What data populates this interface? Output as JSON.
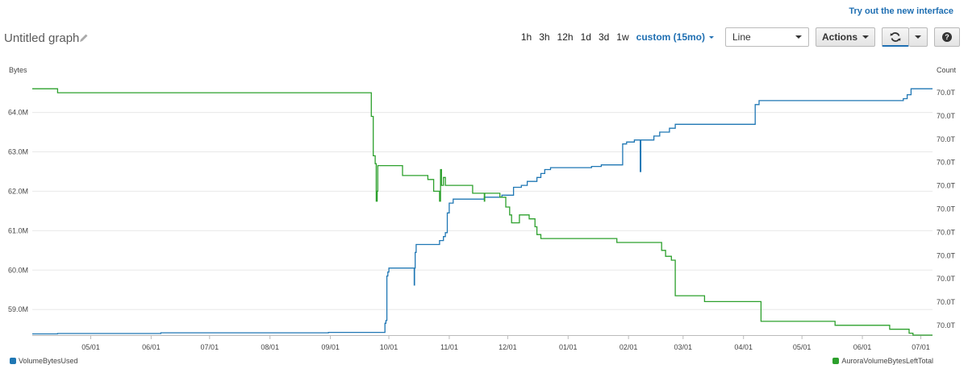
{
  "header": {
    "try_new": "Try out the new interface",
    "title": "Untitled graph"
  },
  "toolbar": {
    "ranges": [
      "1h",
      "3h",
      "12h",
      "1d",
      "3d",
      "1w"
    ],
    "active_range": "custom (15mo)",
    "chart_type": "Line",
    "actions_label": "Actions",
    "help_glyph": "?"
  },
  "chart_data": {
    "type": "line",
    "y_left_label": "Bytes",
    "y_right_label": "Count",
    "y_left_ticks": [
      "64.0M",
      "63.0M",
      "62.0M",
      "61.0M",
      "60.0M",
      "59.0M"
    ],
    "y_left_tick_values": [
      64.0,
      63.0,
      62.0,
      61.0,
      60.0,
      59.0
    ],
    "y_left_range": [
      58.35,
      64.85
    ],
    "y_right_ticks": [
      "70.0T",
      "70.0T",
      "70.0T",
      "70.0T",
      "70.0T",
      "70.0T",
      "70.0T",
      "70.0T",
      "70.0T",
      "70.0T",
      "70.0T"
    ],
    "x_ticks": [
      "05/01",
      "06/01",
      "07/01",
      "08/01",
      "09/01",
      "10/01",
      "11/01",
      "12/01",
      "01/01",
      "02/01",
      "03/01",
      "04/01",
      "05/01",
      "06/01",
      "07/01"
    ],
    "x_tick_days": [
      30,
      61,
      91,
      122,
      153,
      183,
      214,
      244,
      275,
      306,
      334,
      365,
      395,
      426,
      456
    ],
    "x_range": [
      0,
      462
    ],
    "grid": true,
    "series": [
      {
        "name": "VolumeBytesUsed",
        "axis": "left",
        "color": "#1f77b4",
        "points": [
          [
            0,
            58.38
          ],
          [
            13,
            58.38
          ],
          [
            13,
            58.39
          ],
          [
            66,
            58.39
          ],
          [
            66,
            58.41
          ],
          [
            152,
            58.41
          ],
          [
            152,
            58.42
          ],
          [
            181,
            58.42
          ],
          [
            181,
            58.65
          ],
          [
            181.5,
            58.65
          ],
          [
            181.5,
            58.72
          ],
          [
            182,
            58.72
          ],
          [
            182,
            59.85
          ],
          [
            182.5,
            59.85
          ],
          [
            182.5,
            59.95
          ],
          [
            183,
            59.95
          ],
          [
            183,
            60.05
          ],
          [
            196,
            60.05
          ],
          [
            196,
            59.62
          ],
          [
            196.2,
            59.62
          ],
          [
            196.2,
            60.05
          ],
          [
            196.5,
            60.05
          ],
          [
            196.5,
            60.45
          ],
          [
            197,
            60.45
          ],
          [
            197,
            60.65
          ],
          [
            209,
            60.65
          ],
          [
            209,
            60.75
          ],
          [
            211,
            60.75
          ],
          [
            211,
            60.85
          ],
          [
            212,
            60.85
          ],
          [
            212,
            60.95
          ],
          [
            213,
            60.95
          ],
          [
            213,
            61.45
          ],
          [
            214,
            61.45
          ],
          [
            214,
            61.7
          ],
          [
            216,
            61.7
          ],
          [
            216,
            61.8
          ],
          [
            232,
            61.8
          ],
          [
            232,
            61.85
          ],
          [
            241,
            61.85
          ],
          [
            241,
            61.9
          ],
          [
            247,
            61.9
          ],
          [
            247,
            62.1
          ],
          [
            251,
            62.1
          ],
          [
            251,
            62.15
          ],
          [
            254,
            62.15
          ],
          [
            254,
            62.25
          ],
          [
            259,
            62.25
          ],
          [
            259,
            62.35
          ],
          [
            261,
            62.35
          ],
          [
            261,
            62.45
          ],
          [
            263,
            62.45
          ],
          [
            263,
            62.55
          ],
          [
            266,
            62.55
          ],
          [
            266,
            62.6
          ],
          [
            287,
            62.6
          ],
          [
            287,
            62.63
          ],
          [
            292,
            62.63
          ],
          [
            292,
            62.67
          ],
          [
            303,
            62.67
          ],
          [
            303,
            63.2
          ],
          [
            305,
            63.2
          ],
          [
            305,
            63.25
          ],
          [
            309,
            63.25
          ],
          [
            309,
            63.3
          ],
          [
            312,
            63.3
          ],
          [
            312,
            62.5
          ],
          [
            312.3,
            62.5
          ],
          [
            312.3,
            63.3
          ],
          [
            319,
            63.3
          ],
          [
            319,
            63.4
          ],
          [
            322,
            63.4
          ],
          [
            322,
            63.5
          ],
          [
            327,
            63.5
          ],
          [
            327,
            63.6
          ],
          [
            330,
            63.6
          ],
          [
            330,
            63.7
          ],
          [
            371,
            63.7
          ],
          [
            371,
            64.2
          ],
          [
            373,
            64.2
          ],
          [
            373,
            64.3
          ],
          [
            447,
            64.3
          ],
          [
            447,
            64.35
          ],
          [
            449,
            64.35
          ],
          [
            449,
            64.45
          ],
          [
            451,
            64.45
          ],
          [
            451,
            64.6
          ],
          [
            462,
            64.6
          ]
        ]
      },
      {
        "name": "AuroraVolumeBytesLeftTotal",
        "axis": "right",
        "color": "#2ca02c",
        "points": [
          [
            0,
            64.6
          ],
          [
            13,
            64.6
          ],
          [
            13,
            64.5
          ],
          [
            174,
            64.5
          ],
          [
            174,
            63.9
          ],
          [
            175,
            63.9
          ],
          [
            175,
            62.9
          ],
          [
            176,
            62.9
          ],
          [
            176,
            62.7
          ],
          [
            176.5,
            62.7
          ],
          [
            176.5,
            61.75
          ],
          [
            177,
            61.75
          ],
          [
            177,
            62.0
          ],
          [
            177.3,
            62.0
          ],
          [
            177.3,
            62.65
          ],
          [
            190,
            62.65
          ],
          [
            190,
            62.4
          ],
          [
            203,
            62.4
          ],
          [
            203,
            62.3
          ],
          [
            206,
            62.3
          ],
          [
            206,
            62.0
          ],
          [
            209,
            62.0
          ],
          [
            209,
            61.75
          ],
          [
            209.5,
            61.75
          ],
          [
            209.5,
            62.55
          ],
          [
            210,
            62.55
          ],
          [
            210,
            62.15
          ],
          [
            211,
            62.15
          ],
          [
            211,
            62.35
          ],
          [
            212,
            62.35
          ],
          [
            212,
            62.15
          ],
          [
            226,
            62.15
          ],
          [
            226,
            61.95
          ],
          [
            232,
            61.95
          ],
          [
            232,
            61.75
          ],
          [
            232.2,
            61.75
          ],
          [
            232.2,
            61.95
          ],
          [
            240,
            61.95
          ],
          [
            240,
            61.85
          ],
          [
            243,
            61.85
          ],
          [
            243,
            61.6
          ],
          [
            245,
            61.6
          ],
          [
            245,
            61.4
          ],
          [
            246,
            61.4
          ],
          [
            246,
            61.2
          ],
          [
            250,
            61.2
          ],
          [
            250,
            61.4
          ],
          [
            255,
            61.4
          ],
          [
            255,
            61.3
          ],
          [
            258,
            61.3
          ],
          [
            258,
            61.1
          ],
          [
            259,
            61.1
          ],
          [
            259,
            60.9
          ],
          [
            261,
            60.9
          ],
          [
            261,
            60.8
          ],
          [
            300,
            60.8
          ],
          [
            300,
            60.7
          ],
          [
            323,
            60.7
          ],
          [
            323,
            60.5
          ],
          [
            325,
            60.5
          ],
          [
            325,
            60.35
          ],
          [
            328,
            60.35
          ],
          [
            328,
            60.25
          ],
          [
            330,
            60.25
          ],
          [
            330,
            59.35
          ],
          [
            345,
            59.35
          ],
          [
            345,
            59.2
          ],
          [
            374,
            59.2
          ],
          [
            374,
            58.7
          ],
          [
            412,
            58.7
          ],
          [
            412,
            58.6
          ],
          [
            440,
            58.6
          ],
          [
            440,
            58.5
          ],
          [
            450,
            58.5
          ],
          [
            450,
            58.4
          ],
          [
            452,
            58.4
          ],
          [
            452,
            58.35
          ],
          [
            462,
            58.35
          ]
        ]
      }
    ],
    "legend": [
      "VolumeBytesUsed",
      "AuroraVolumeBytesLeftTotal"
    ],
    "legend_placement": "bottom"
  }
}
